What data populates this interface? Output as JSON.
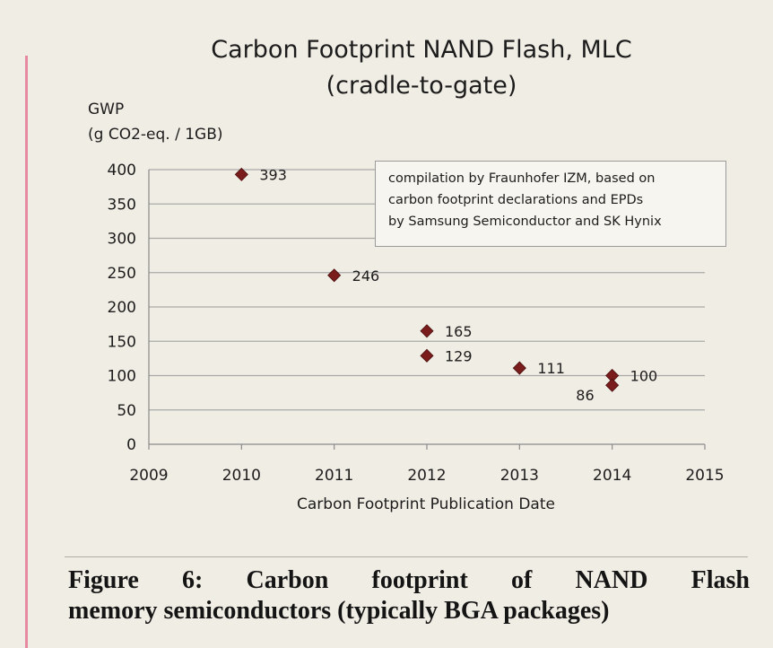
{
  "chart_data": {
    "type": "scatter",
    "title_lines": [
      "Carbon Footprint NAND Flash, MLC",
      "(cradle-to-gate)"
    ],
    "ylabel_lines": [
      "GWP",
      "(g CO2-eq. / 1GB)"
    ],
    "xlabel": "Carbon Footprint Publication Date",
    "xlim": [
      2009,
      2015
    ],
    "ylim": [
      0,
      400
    ],
    "x_ticks": [
      2009,
      2010,
      2011,
      2012,
      2013,
      2014,
      2015
    ],
    "y_ticks": [
      0,
      50,
      100,
      150,
      200,
      250,
      300,
      350,
      400
    ],
    "grid": true,
    "marker": "diamond",
    "marker_color": "#7a1c1c",
    "points": [
      {
        "x": 2010,
        "y": 393,
        "label": "393"
      },
      {
        "x": 2011,
        "y": 246,
        "label": "246"
      },
      {
        "x": 2012,
        "y": 165,
        "label": "165"
      },
      {
        "x": 2012,
        "y": 129,
        "label": "129"
      },
      {
        "x": 2013,
        "y": 111,
        "label": "111"
      },
      {
        "x": 2014,
        "y": 100,
        "label": "100"
      },
      {
        "x": 2014,
        "y": 86,
        "label": "86"
      }
    ],
    "annotation_lines": [
      "compilation by Fraunhofer IZM, based on",
      "carbon footprint declarations and EPDs",
      "by Samsung Semiconductor and SK Hynix"
    ]
  },
  "caption": {
    "line1_words": [
      "Figure",
      "6:",
      "Carbon",
      "footprint",
      "of",
      "NAND",
      "Flash"
    ],
    "line2": "memory semiconductors (typically BGA packages)"
  }
}
